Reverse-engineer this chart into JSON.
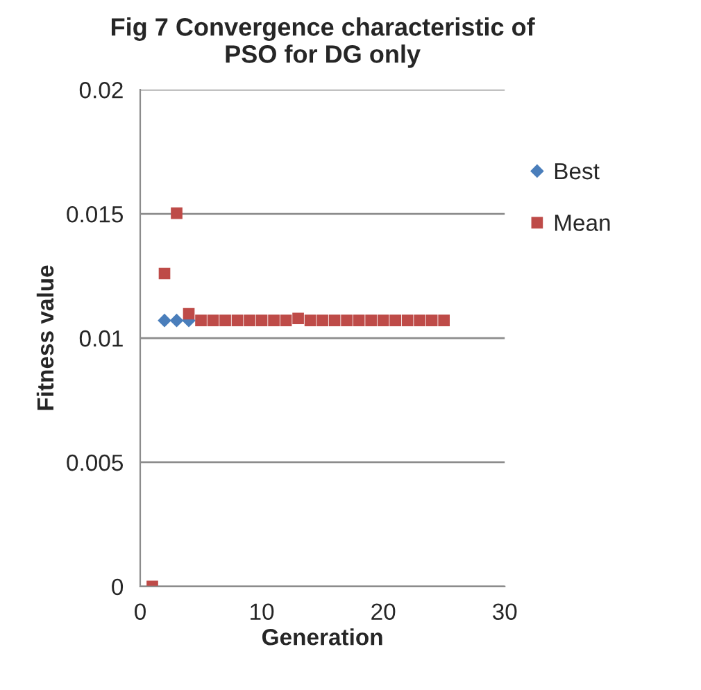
{
  "chart_data": {
    "type": "scatter",
    "title": "Fig 7 Convergence characteristic of\nPSO for DG only",
    "xlabel": "Generation",
    "ylabel": "Fitness value",
    "x": [
      1,
      2,
      3,
      4,
      5,
      6,
      7,
      8,
      9,
      10,
      11,
      12,
      13,
      14,
      15,
      16,
      17,
      18,
      19,
      20,
      21,
      22,
      23,
      24,
      25
    ],
    "series": [
      {
        "name": "Best",
        "color": "#4a7ebb",
        "marker": "diamond",
        "values": [
          null,
          0.01071,
          0.01071,
          0.01071,
          null,
          null,
          null,
          null,
          null,
          null,
          null,
          null,
          null,
          null,
          null,
          null,
          null,
          null,
          null,
          null,
          null,
          null,
          null,
          null,
          null
        ]
      },
      {
        "name": "Mean",
        "color": "#be4b48",
        "marker": "square",
        "values": [
          0,
          0.0126,
          0.01503,
          0.01098,
          0.01071,
          0.01071,
          0.01071,
          0.01071,
          0.01071,
          0.01071,
          0.01071,
          0.01071,
          0.01079,
          0.01071,
          0.01071,
          0.01071,
          0.01071,
          0.01071,
          0.01071,
          0.01071,
          0.01071,
          0.01071,
          0.01071,
          0.01071,
          0.01071
        ]
      }
    ],
    "xlim": [
      0,
      30
    ],
    "xticks": [
      0,
      10,
      20,
      30
    ],
    "ylim": [
      0,
      0.02
    ],
    "yticks": [
      0,
      0.005,
      0.01,
      0.015,
      0.02
    ],
    "grid": "y",
    "legend": "right"
  }
}
